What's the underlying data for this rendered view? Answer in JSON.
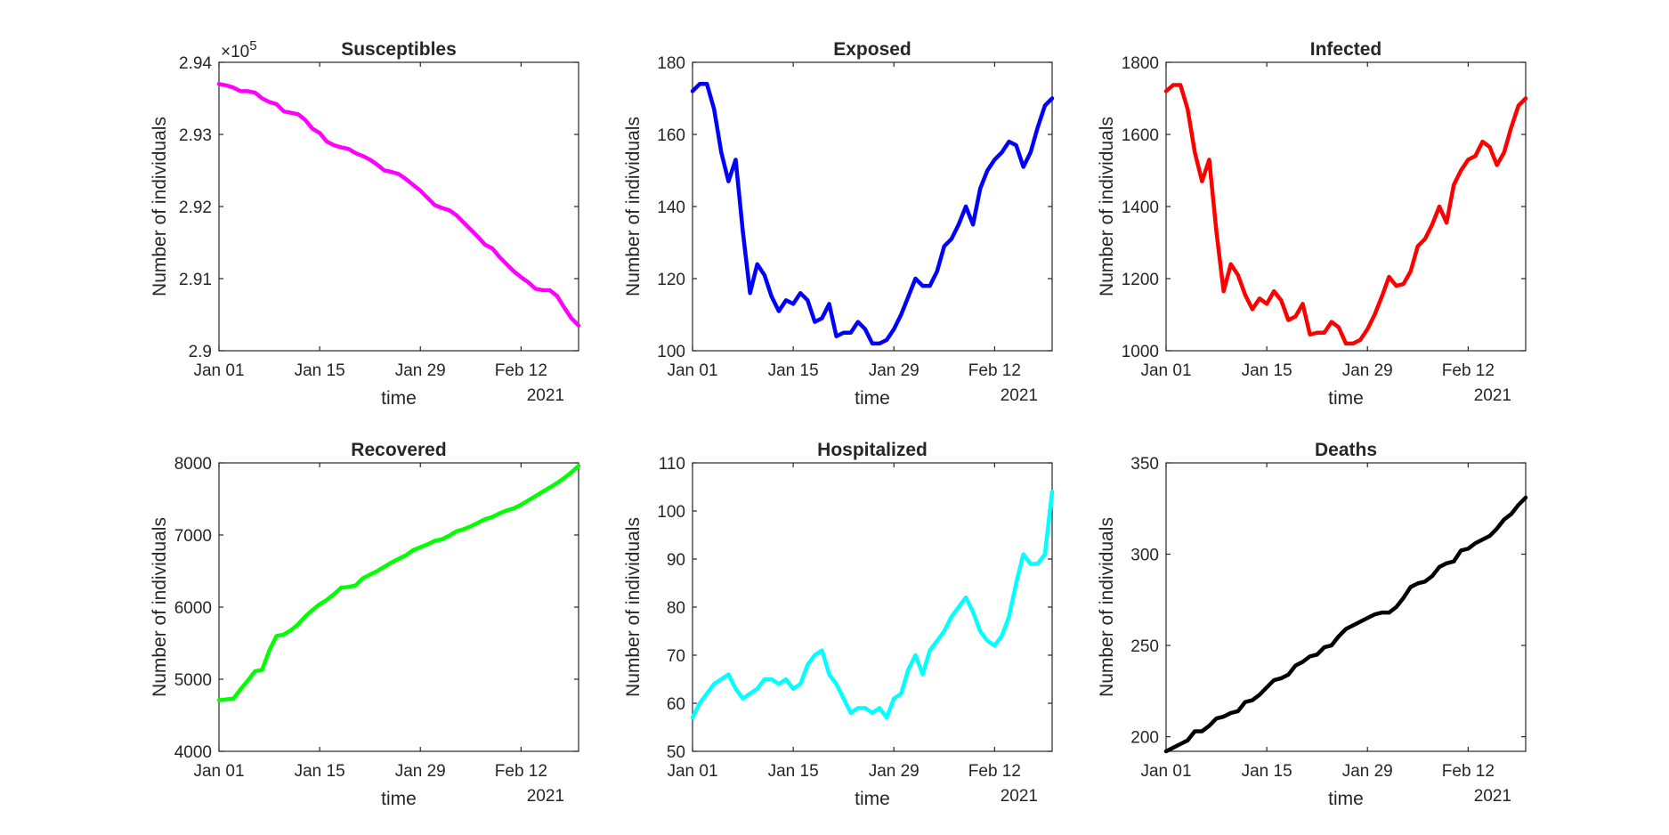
{
  "chart_data": [
    {
      "type": "line",
      "title": "Susceptibles",
      "xlabel": "time",
      "ylabel": "Number of individuals",
      "year_label": "2021",
      "exponent_label": "×10",
      "exponent": "5",
      "color": "#ff00ff",
      "xticks": [
        "Jan 01",
        "Jan 15",
        "Jan 29",
        "Feb 12"
      ],
      "yticks": [
        "2.9",
        "2.91",
        "2.92",
        "2.93",
        "2.94"
      ],
      "ylim": [
        290000,
        294000
      ],
      "xlim": [
        "2021-01-01",
        "2021-02-20"
      ],
      "x_start": "2021-01-01",
      "values": [
        293700,
        293680,
        293650,
        293600,
        293600,
        293580,
        293500,
        293450,
        293420,
        293320,
        293300,
        293280,
        293200,
        293080,
        293020,
        292900,
        292850,
        292820,
        292800,
        292740,
        292700,
        292650,
        292580,
        292500,
        292480,
        292450,
        292380,
        292300,
        292220,
        292120,
        292020,
        291980,
        291950,
        291880,
        291780,
        291680,
        291580,
        291470,
        291420,
        291300,
        291200,
        291100,
        291020,
        290950,
        290860,
        290840,
        290840,
        290760,
        290600,
        290450,
        290350
      ]
    },
    {
      "type": "line",
      "title": "Exposed",
      "xlabel": "time",
      "ylabel": "Number of individuals",
      "year_label": "2021",
      "color": "#0000ff",
      "xticks": [
        "Jan 01",
        "Jan 15",
        "Jan 29",
        "Feb 12"
      ],
      "yticks": [
        "100",
        "120",
        "140",
        "160",
        "180"
      ],
      "ylim": [
        100,
        180
      ],
      "xlim": [
        "2021-01-01",
        "2021-02-20"
      ],
      "x_start": "2021-01-01",
      "values": [
        172,
        174,
        174,
        167,
        155,
        147,
        153,
        133,
        116,
        124,
        121,
        115,
        111,
        114,
        113,
        116,
        114,
        108,
        109,
        113,
        104,
        105,
        105,
        108,
        106,
        102,
        102,
        103,
        106,
        110,
        115,
        120,
        118,
        118,
        122,
        129,
        131,
        135,
        140,
        135,
        145,
        150,
        153,
        155,
        158,
        157,
        151,
        155,
        162,
        168,
        170
      ]
    },
    {
      "type": "line",
      "title": "Infected",
      "xlabel": "time",
      "ylabel": "Number of individuals",
      "year_label": "2021",
      "color": "#ff0000",
      "xticks": [
        "Jan 01",
        "Jan 15",
        "Jan 29",
        "Feb 12"
      ],
      "yticks": [
        "1000",
        "1200",
        "1400",
        "1600",
        "1800"
      ],
      "ylim": [
        1000,
        1800
      ],
      "xlim": [
        "2021-01-01",
        "2021-02-20"
      ],
      "x_start": "2021-01-01",
      "values": [
        1720,
        1737,
        1737,
        1670,
        1550,
        1470,
        1530,
        1330,
        1165,
        1240,
        1210,
        1155,
        1115,
        1145,
        1130,
        1165,
        1140,
        1085,
        1095,
        1130,
        1045,
        1050,
        1050,
        1080,
        1065,
        1020,
        1020,
        1030,
        1060,
        1100,
        1150,
        1205,
        1180,
        1185,
        1220,
        1290,
        1310,
        1350,
        1400,
        1355,
        1460,
        1500,
        1530,
        1540,
        1580,
        1565,
        1515,
        1550,
        1620,
        1680,
        1700
      ]
    },
    {
      "type": "line",
      "title": "Recovered",
      "xlabel": "time",
      "ylabel": "Number of individuals",
      "year_label": "2021",
      "color": "#00ff00",
      "xticks": [
        "Jan 01",
        "Jan 15",
        "Jan 29",
        "Feb 12"
      ],
      "yticks": [
        "4000",
        "5000",
        "6000",
        "7000",
        "8000"
      ],
      "ylim": [
        4000,
        8000
      ],
      "xlim": [
        "2021-01-01",
        "2021-02-20"
      ],
      "x_start": "2021-01-01",
      "values": [
        4710,
        4720,
        4730,
        4860,
        4980,
        5110,
        5130,
        5400,
        5600,
        5620,
        5680,
        5760,
        5870,
        5960,
        6040,
        6100,
        6180,
        6270,
        6280,
        6300,
        6400,
        6450,
        6500,
        6560,
        6620,
        6670,
        6720,
        6790,
        6830,
        6870,
        6920,
        6940,
        6990,
        7050,
        7080,
        7120,
        7170,
        7220,
        7250,
        7300,
        7340,
        7370,
        7420,
        7480,
        7540,
        7600,
        7660,
        7720,
        7790,
        7870,
        7960
      ]
    },
    {
      "type": "line",
      "title": "Hospitalized",
      "xlabel": "time",
      "ylabel": "Number of individuals",
      "year_label": "2021",
      "color": "#00ffff",
      "xticks": [
        "Jan 01",
        "Jan 15",
        "Jan 29",
        "Feb 12"
      ],
      "yticks": [
        "50",
        "60",
        "70",
        "80",
        "90",
        "100",
        "110"
      ],
      "ylim": [
        50,
        110
      ],
      "xlim": [
        "2021-01-01",
        "2021-02-20"
      ],
      "x_start": "2021-01-01",
      "values": [
        57,
        60,
        62,
        64,
        65,
        66,
        63,
        61,
        62,
        63,
        65,
        65,
        64,
        65,
        63,
        64,
        68,
        70,
        71,
        66,
        64,
        61,
        58,
        59,
        59,
        58,
        59,
        57,
        61,
        62,
        67,
        70,
        66,
        71,
        73,
        75,
        78,
        80,
        82,
        79,
        75,
        73,
        72,
        74,
        78,
        85,
        91,
        89,
        89,
        91,
        104
      ]
    },
    {
      "type": "line",
      "title": "Deaths",
      "xlabel": "time",
      "ylabel": "Number of individuals",
      "year_label": "2021",
      "color": "#000000",
      "xticks": [
        "Jan 01",
        "Jan 15",
        "Jan 29",
        "Feb 12"
      ],
      "yticks": [
        "200",
        "250",
        "300",
        "350"
      ],
      "ylim": [
        192,
        350
      ],
      "xlim": [
        "2021-01-01",
        "2021-02-20"
      ],
      "x_start": "2021-01-01",
      "values": [
        192,
        194,
        196,
        198,
        203,
        203,
        206,
        210,
        211,
        213,
        214,
        219,
        220,
        223,
        227,
        231,
        232,
        234,
        239,
        241,
        244,
        245,
        249,
        250,
        255,
        259,
        261,
        263,
        265,
        267,
        268,
        268,
        271,
        276,
        282,
        284,
        285,
        288,
        293,
        295,
        296,
        302,
        303,
        306,
        308,
        310,
        314,
        319,
        322,
        327,
        331
      ]
    }
  ]
}
